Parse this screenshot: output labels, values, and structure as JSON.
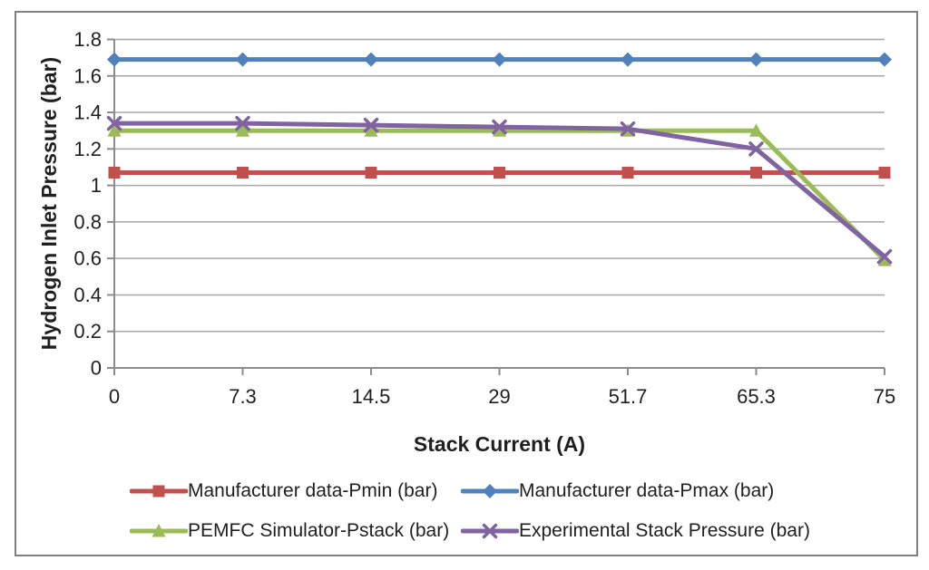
{
  "chart_data": {
    "type": "line",
    "title": "",
    "xlabel": "Stack Current (A)",
    "ylabel": "Hydrogen Inlet Pressure (bar)",
    "categories": [
      "0",
      "7.3",
      "14.5",
      "29",
      "51.7",
      "65.3",
      "75"
    ],
    "y_ticks": [
      "0",
      "0.2",
      "0.4",
      "0.6",
      "0.8",
      "1",
      "1.2",
      "1.4",
      "1.6",
      "1.8"
    ],
    "ylim": [
      0,
      1.8
    ],
    "y_tick_step": 0.2,
    "grid": "horizontal",
    "legend_position": "bottom-two-columns",
    "series": [
      {
        "name": "Manufacturer data-Pmin (bar)",
        "color": "#C0504D",
        "marker": "square",
        "values": [
          1.07,
          1.07,
          1.07,
          1.07,
          1.07,
          1.07,
          1.07
        ]
      },
      {
        "name": "Manufacturer data-Pmax (bar)",
        "color": "#4F81BD",
        "marker": "diamond",
        "values": [
          1.69,
          1.69,
          1.69,
          1.69,
          1.69,
          1.69,
          1.69
        ]
      },
      {
        "name": "PEMFC Simulator-Pstack (bar)",
        "color": "#9BBB59",
        "marker": "triangle",
        "values": [
          1.3,
          1.3,
          1.3,
          1.3,
          1.3,
          1.3,
          0.59
        ]
      },
      {
        "name": "Experimental Stack Pressure (bar)",
        "color": "#8064A2",
        "marker": "x",
        "values": [
          1.34,
          1.34,
          1.33,
          1.32,
          1.31,
          1.2,
          0.61
        ]
      }
    ],
    "colors": {
      "gridline": "#A6A6A6",
      "axis": "#8C8C8C",
      "frame_border": "#808080",
      "text": "#1F1F1F",
      "background": "#FFFFFF"
    }
  }
}
